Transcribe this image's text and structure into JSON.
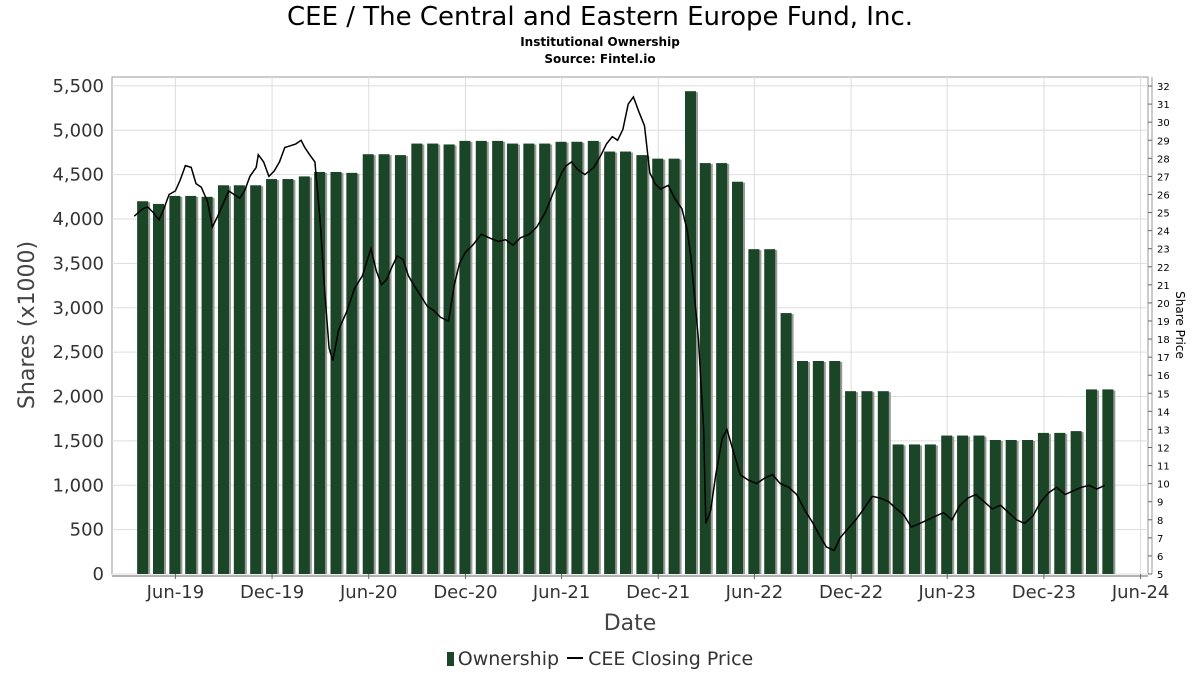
{
  "title": "CEE / The Central and Eastern Europe Fund, Inc.",
  "subtitle1": "Institutional Ownership",
  "subtitle2": "Source: Fintel.io",
  "legend": {
    "ownership": "Ownership",
    "price": "CEE Closing Price"
  },
  "colors": {
    "bar": "#1b4527",
    "bar_shadow": "#9a9a9a",
    "line": "#000000",
    "grid": "#dddddd"
  },
  "chart_data": {
    "type": "bar",
    "title": "CEE / The Central and Eastern Europe Fund, Inc.",
    "xlabel": "Date",
    "ylabel": "Shares (x1000)",
    "y2label": "Share Price",
    "ylim": [
      0,
      5600
    ],
    "y2lim": [
      5,
      32.5
    ],
    "yticks": [
      0,
      500,
      1000,
      1500,
      2000,
      2500,
      3000,
      3500,
      4000,
      4500,
      5000,
      5500
    ],
    "yticklabels": [
      "0",
      "500",
      "1,000",
      "1,500",
      "2,000",
      "2,500",
      "3,000",
      "3,500",
      "4,000",
      "4,500",
      "5,000",
      "5,500"
    ],
    "y2ticks": [
      5,
      6,
      7,
      8,
      9,
      10,
      11,
      12,
      13,
      14,
      15,
      16,
      17,
      18,
      19,
      20,
      21,
      22,
      23,
      24,
      25,
      26,
      27,
      28,
      29,
      30,
      31,
      32
    ],
    "xlim": [
      "2019-02-01",
      "2024-06-15"
    ],
    "xticks": [
      "2019-06-01",
      "2019-12-01",
      "2020-06-01",
      "2020-12-01",
      "2021-06-01",
      "2021-12-01",
      "2022-06-01",
      "2022-12-01",
      "2023-06-01",
      "2023-12-01",
      "2024-06-01"
    ],
    "xticklabels": [
      "Jun-19",
      "Dec-19",
      "Jun-20",
      "Dec-20",
      "Jun-21",
      "Dec-21",
      "Jun-22",
      "Dec-22",
      "Jun-23",
      "Dec-23",
      "Jun-24"
    ],
    "grid": true,
    "legend_position": "bottom",
    "ownership": {
      "name": "Ownership",
      "dates": [
        "2019-03-31",
        "2019-04-30",
        "2019-05-31",
        "2019-06-30",
        "2019-07-31",
        "2019-08-31",
        "2019-09-30",
        "2019-10-31",
        "2019-11-30",
        "2019-12-31",
        "2020-01-31",
        "2020-02-29",
        "2020-03-31",
        "2020-04-30",
        "2020-05-31",
        "2020-06-30",
        "2020-07-31",
        "2020-08-31",
        "2020-09-30",
        "2020-10-31",
        "2020-11-30",
        "2020-12-31",
        "2021-01-31",
        "2021-02-28",
        "2021-03-31",
        "2021-04-30",
        "2021-05-31",
        "2021-06-30",
        "2021-07-31",
        "2021-08-31",
        "2021-09-30",
        "2021-10-31",
        "2021-11-30",
        "2021-12-31",
        "2022-01-31",
        "2022-02-28",
        "2022-03-31",
        "2022-04-30",
        "2022-05-31",
        "2022-06-30",
        "2022-07-31",
        "2022-08-31",
        "2022-09-30",
        "2022-10-31",
        "2022-11-30",
        "2022-12-31",
        "2023-01-31",
        "2023-02-28",
        "2023-03-31",
        "2023-04-30",
        "2023-05-31",
        "2023-06-30",
        "2023-07-31",
        "2023-08-31",
        "2023-09-30",
        "2023-10-31",
        "2023-11-30",
        "2023-12-31",
        "2024-01-31",
        "2024-02-29",
        "2024-03-31"
      ],
      "values": [
        4200,
        4170,
        4260,
        4260,
        4250,
        4380,
        4380,
        4380,
        4450,
        4450,
        4480,
        4530,
        4530,
        4520,
        4730,
        4730,
        4720,
        4850,
        4850,
        4840,
        4880,
        4880,
        4880,
        4850,
        4850,
        4850,
        4870,
        4870,
        4880,
        4760,
        4760,
        4720,
        4680,
        4680,
        5440,
        4630,
        4630,
        4420,
        3660,
        3660,
        2940,
        2400,
        2400,
        2400,
        2060,
        2060,
        2060,
        1460,
        1460,
        1460,
        1560,
        1560,
        1560,
        1510,
        1510,
        1510,
        1590,
        1590,
        1610,
        2080,
        2080
      ]
    },
    "price": {
      "name": "CEE Closing Price",
      "points": [
        [
          "2019-03-15",
          24.8
        ],
        [
          "2019-03-31",
          25.2
        ],
        [
          "2019-04-10",
          25.3
        ],
        [
          "2019-04-20",
          25.0
        ],
        [
          "2019-05-01",
          24.6
        ],
        [
          "2019-05-10",
          25.2
        ],
        [
          "2019-05-20",
          26.0
        ],
        [
          "2019-06-01",
          26.2
        ],
        [
          "2019-06-10",
          26.8
        ],
        [
          "2019-06-20",
          27.6
        ],
        [
          "2019-07-01",
          27.5
        ],
        [
          "2019-07-10",
          26.6
        ],
        [
          "2019-07-20",
          26.4
        ],
        [
          "2019-08-01",
          25.6
        ],
        [
          "2019-08-10",
          24.2
        ],
        [
          "2019-08-20",
          24.8
        ],
        [
          "2019-09-01",
          25.6
        ],
        [
          "2019-09-10",
          26.2
        ],
        [
          "2019-09-20",
          26.0
        ],
        [
          "2019-10-01",
          25.8
        ],
        [
          "2019-10-10",
          26.2
        ],
        [
          "2019-10-20",
          27.0
        ],
        [
          "2019-11-01",
          27.5
        ],
        [
          "2019-11-05",
          28.2
        ],
        [
          "2019-11-15",
          27.8
        ],
        [
          "2019-11-25",
          27.0
        ],
        [
          "2019-12-05",
          27.3
        ],
        [
          "2019-12-15",
          27.8
        ],
        [
          "2019-12-25",
          28.6
        ],
        [
          "2020-01-05",
          28.7
        ],
        [
          "2020-01-15",
          28.8
        ],
        [
          "2020-01-25",
          29.0
        ],
        [
          "2020-02-01",
          28.6
        ],
        [
          "2020-02-10",
          28.2
        ],
        [
          "2020-02-20",
          27.8
        ],
        [
          "2020-03-01",
          24.5
        ],
        [
          "2020-03-10",
          20.5
        ],
        [
          "2020-03-18",
          17.5
        ],
        [
          "2020-03-25",
          16.8
        ],
        [
          "2020-04-05",
          18.5
        ],
        [
          "2020-04-20",
          19.5
        ],
        [
          "2020-05-05",
          20.8
        ],
        [
          "2020-05-20",
          21.5
        ],
        [
          "2020-06-05",
          23.0
        ],
        [
          "2020-06-15",
          21.8
        ],
        [
          "2020-06-25",
          21.0
        ],
        [
          "2020-07-05",
          21.3
        ],
        [
          "2020-07-15",
          22.0
        ],
        [
          "2020-07-25",
          22.6
        ],
        [
          "2020-08-05",
          22.4
        ],
        [
          "2020-08-15",
          21.5
        ],
        [
          "2020-08-25",
          21.0
        ],
        [
          "2020-09-05",
          20.5
        ],
        [
          "2020-09-20",
          19.8
        ],
        [
          "2020-10-01",
          19.6
        ],
        [
          "2020-10-15",
          19.2
        ],
        [
          "2020-10-30",
          19.0
        ],
        [
          "2020-11-10",
          21.0
        ],
        [
          "2020-11-20",
          22.2
        ],
        [
          "2020-12-01",
          22.8
        ],
        [
          "2020-12-15",
          23.2
        ],
        [
          "2020-12-31",
          23.8
        ],
        [
          "2021-01-15",
          23.6
        ],
        [
          "2021-02-01",
          23.4
        ],
        [
          "2021-02-15",
          23.5
        ],
        [
          "2021-03-01",
          23.2
        ],
        [
          "2021-03-15",
          23.6
        ],
        [
          "2021-04-01",
          23.8
        ],
        [
          "2021-04-15",
          24.2
        ],
        [
          "2021-05-01",
          25.0
        ],
        [
          "2021-05-15",
          26.0
        ],
        [
          "2021-06-01",
          27.2
        ],
        [
          "2021-06-10",
          27.6
        ],
        [
          "2021-06-20",
          27.8
        ],
        [
          "2021-07-01",
          27.4
        ],
        [
          "2021-07-15",
          27.1
        ],
        [
          "2021-08-01",
          27.5
        ],
        [
          "2021-08-15",
          28.2
        ],
        [
          "2021-08-25",
          28.8
        ],
        [
          "2021-09-05",
          29.2
        ],
        [
          "2021-09-15",
          29.0
        ],
        [
          "2021-09-25",
          29.6
        ],
        [
          "2021-10-05",
          31.0
        ],
        [
          "2021-10-15",
          31.4
        ],
        [
          "2021-10-25",
          30.6
        ],
        [
          "2021-11-05",
          29.8
        ],
        [
          "2021-11-15",
          27.2
        ],
        [
          "2021-11-25",
          26.6
        ],
        [
          "2021-12-05",
          26.3
        ],
        [
          "2021-12-20",
          26.5
        ],
        [
          "2022-01-01",
          25.8
        ],
        [
          "2022-01-15",
          25.2
        ],
        [
          "2022-01-25",
          24.0
        ],
        [
          "2022-02-01",
          22.5
        ],
        [
          "2022-02-15",
          18.0
        ],
        [
          "2022-02-25",
          13.0
        ],
        [
          "2022-03-01",
          7.8
        ],
        [
          "2022-03-10",
          8.5
        ],
        [
          "2022-03-20",
          10.5
        ],
        [
          "2022-04-01",
          12.5
        ],
        [
          "2022-04-10",
          13.0
        ],
        [
          "2022-04-25",
          11.5
        ],
        [
          "2022-05-05",
          10.5
        ],
        [
          "2022-05-20",
          10.2
        ],
        [
          "2022-06-05",
          10.0
        ],
        [
          "2022-06-20",
          10.3
        ],
        [
          "2022-07-05",
          10.5
        ],
        [
          "2022-07-20",
          10.0
        ],
        [
          "2022-08-05",
          9.8
        ],
        [
          "2022-08-20",
          9.4
        ],
        [
          "2022-09-05",
          8.5
        ],
        [
          "2022-09-20",
          7.8
        ],
        [
          "2022-10-01",
          7.2
        ],
        [
          "2022-10-15",
          6.5
        ],
        [
          "2022-10-30",
          6.3
        ],
        [
          "2022-11-10",
          7.0
        ],
        [
          "2022-11-25",
          7.5
        ],
        [
          "2022-12-10",
          8.0
        ],
        [
          "2022-12-25",
          8.6
        ],
        [
          "2023-01-10",
          9.3
        ],
        [
          "2023-01-25",
          9.2
        ],
        [
          "2023-02-10",
          9.0
        ],
        [
          "2023-02-25",
          8.6
        ],
        [
          "2023-03-10",
          8.3
        ],
        [
          "2023-03-25",
          7.6
        ],
        [
          "2023-04-10",
          7.8
        ],
        [
          "2023-04-25",
          8.0
        ],
        [
          "2023-05-10",
          8.2
        ],
        [
          "2023-05-25",
          8.4
        ],
        [
          "2023-06-10",
          8.0
        ],
        [
          "2023-06-25",
          8.8
        ],
        [
          "2023-07-10",
          9.2
        ],
        [
          "2023-07-25",
          9.4
        ],
        [
          "2023-08-10",
          9.0
        ],
        [
          "2023-08-25",
          8.6
        ],
        [
          "2023-09-10",
          8.8
        ],
        [
          "2023-09-25",
          8.4
        ],
        [
          "2023-10-10",
          8.0
        ],
        [
          "2023-10-25",
          7.8
        ],
        [
          "2023-11-10",
          8.2
        ],
        [
          "2023-11-25",
          9.0
        ],
        [
          "2023-12-10",
          9.5
        ],
        [
          "2023-12-25",
          9.8
        ],
        [
          "2024-01-10",
          9.4
        ],
        [
          "2024-01-25",
          9.6
        ],
        [
          "2024-02-10",
          9.8
        ],
        [
          "2024-02-25",
          9.9
        ],
        [
          "2024-03-10",
          9.7
        ],
        [
          "2024-03-25",
          9.9
        ]
      ]
    }
  }
}
